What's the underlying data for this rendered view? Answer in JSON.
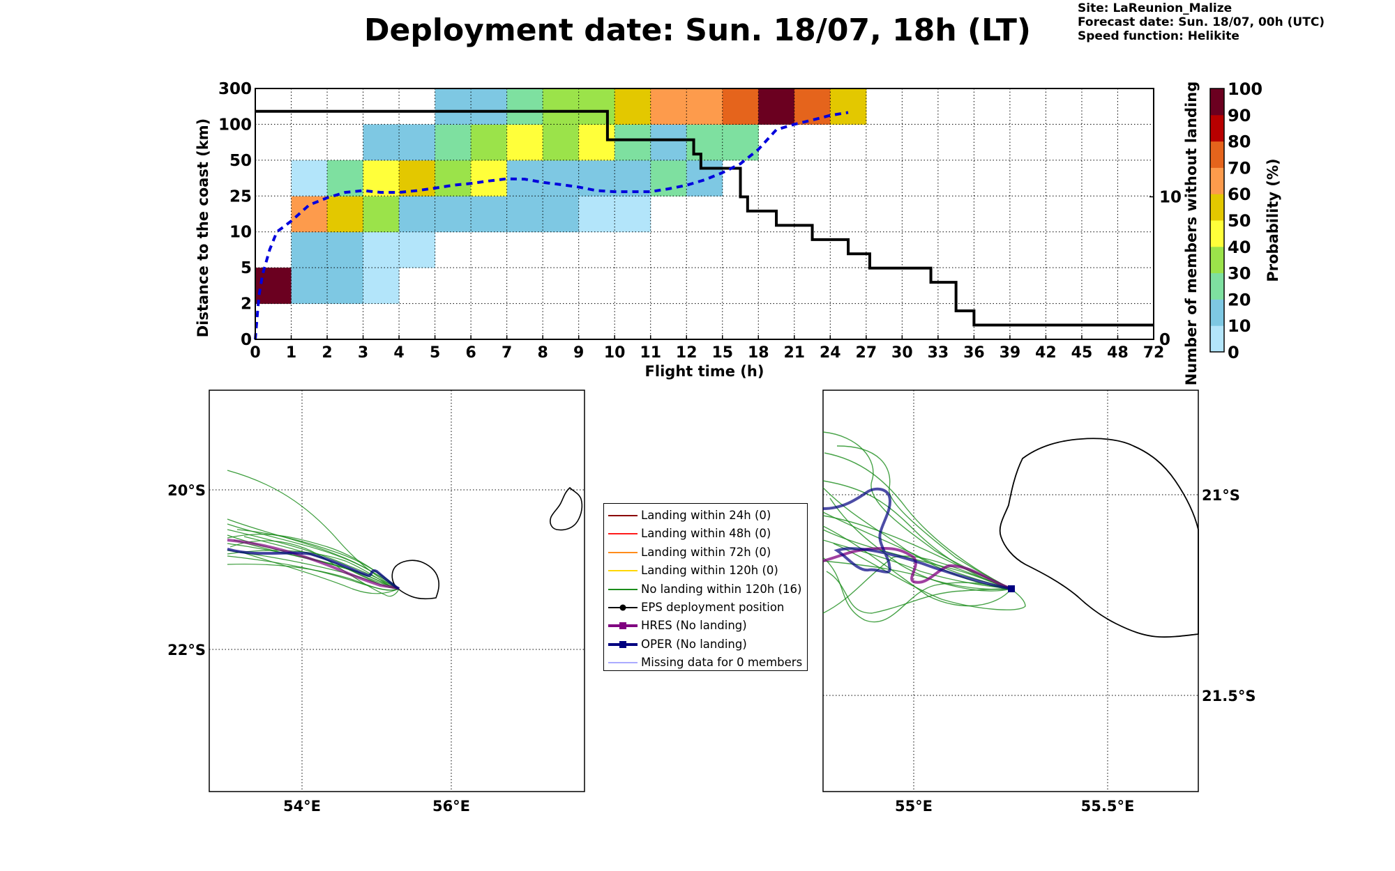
{
  "header": {
    "title": "Deployment date: Sun. 18/07, 18h (LT)",
    "site": "Site: LaReunion_Malize",
    "forecast_date": "Forecast date: Sun. 18/07, 00h (UTC)",
    "speed_function": "Speed function: Helikite"
  },
  "chart_data": [
    {
      "type": "heatmap",
      "xlabel": "Flight time (h)",
      "ylabel": "Distance to the coast (km)",
      "y2label": "Number of members without landing",
      "colorbar_label": "Probability (%)",
      "x_ticks": [
        "0",
        "1",
        "2",
        "3",
        "4",
        "5",
        "6",
        "7",
        "8",
        "9",
        "10",
        "11",
        "12",
        "15",
        "18",
        "21",
        "24",
        "27",
        "30",
        "33",
        "36",
        "39",
        "42",
        "45",
        "48",
        "72"
      ],
      "y_ticks": [
        "0",
        "2",
        "5",
        "10",
        "25",
        "50",
        "100",
        "300"
      ],
      "y2_ticks": [
        "0",
        "10"
      ],
      "y2lim": [
        0,
        17.6
      ],
      "colorbar_ticks": [
        "0",
        "10",
        "20",
        "30",
        "40",
        "50",
        "60",
        "70",
        "80",
        "90",
        "100"
      ],
      "colorbar_colors": [
        "#b3e5fa",
        "#7ec8e3",
        "#7ee0a0",
        "#9be34a",
        "#ffff3a",
        "#e3c800",
        "#fd9b4c",
        "#e5641c",
        "#b80000",
        "#6b0020"
      ],
      "cells": [
        {
          "x": 0,
          "y": 1,
          "p": 100
        },
        {
          "x": 1,
          "y": 1,
          "p": 10
        },
        {
          "x": 2,
          "y": 1,
          "p": 10
        },
        {
          "x": 3,
          "y": 1,
          "p": 0
        },
        {
          "x": 1,
          "y": 2,
          "p": 10
        },
        {
          "x": 2,
          "y": 2,
          "p": 10
        },
        {
          "x": 3,
          "y": 2,
          "p": 0
        },
        {
          "x": 4,
          "y": 2,
          "p": 0
        },
        {
          "x": 1,
          "y": 3,
          "p": 60
        },
        {
          "x": 2,
          "y": 3,
          "p": 50
        },
        {
          "x": 3,
          "y": 3,
          "p": 30
        },
        {
          "x": 4,
          "y": 3,
          "p": 10
        },
        {
          "x": 5,
          "y": 3,
          "p": 10
        },
        {
          "x": 6,
          "y": 3,
          "p": 10
        },
        {
          "x": 7,
          "y": 3,
          "p": 10
        },
        {
          "x": 8,
          "y": 3,
          "p": 10
        },
        {
          "x": 9,
          "y": 3,
          "p": 0
        },
        {
          "x": 10,
          "y": 3,
          "p": 0
        },
        {
          "x": 1,
          "y": 4,
          "p": 0
        },
        {
          "x": 2,
          "y": 4,
          "p": 20
        },
        {
          "x": 3,
          "y": 4,
          "p": 40
        },
        {
          "x": 4,
          "y": 4,
          "p": 50
        },
        {
          "x": 5,
          "y": 4,
          "p": 30
        },
        {
          "x": 6,
          "y": 4,
          "p": 40
        },
        {
          "x": 7,
          "y": 4,
          "p": 10
        },
        {
          "x": 8,
          "y": 4,
          "p": 10
        },
        {
          "x": 9,
          "y": 4,
          "p": 10
        },
        {
          "x": 10,
          "y": 4,
          "p": 10
        },
        {
          "x": 11,
          "y": 4,
          "p": 20
        },
        {
          "x": 12,
          "y": 4,
          "p": 10
        },
        {
          "x": 3,
          "y": 5,
          "p": 10
        },
        {
          "x": 4,
          "y": 5,
          "p": 10
        },
        {
          "x": 5,
          "y": 5,
          "p": 20
        },
        {
          "x": 6,
          "y": 5,
          "p": 30
        },
        {
          "x": 7,
          "y": 5,
          "p": 40
        },
        {
          "x": 8,
          "y": 5,
          "p": 30
        },
        {
          "x": 9,
          "y": 5,
          "p": 40
        },
        {
          "x": 10,
          "y": 5,
          "p": 20
        },
        {
          "x": 11,
          "y": 5,
          "p": 10
        },
        {
          "x": 12,
          "y": 5,
          "p": 20
        },
        {
          "x": 13,
          "y": 5,
          "p": 20
        },
        {
          "x": 5,
          "y": 6,
          "p": 10
        },
        {
          "x": 6,
          "y": 6,
          "p": 10
        },
        {
          "x": 7,
          "y": 6,
          "p": 20
        },
        {
          "x": 8,
          "y": 6,
          "p": 30
        },
        {
          "x": 9,
          "y": 6,
          "p": 30
        },
        {
          "x": 10,
          "y": 6,
          "p": 50
        },
        {
          "x": 11,
          "y": 6,
          "p": 60
        },
        {
          "x": 12,
          "y": 6,
          "p": 60
        },
        {
          "x": 13,
          "y": 6,
          "p": 70
        },
        {
          "x": 14,
          "y": 6,
          "p": 90
        },
        {
          "x": 15,
          "y": 6,
          "p": 70
        },
        {
          "x": 16,
          "y": 6,
          "p": 50
        }
      ],
      "series": [
        {
          "name": "Number of members without landing",
          "color": "#000000",
          "x": [
            0,
            9.65,
            9.8,
            11.5,
            12.2,
            12.4,
            13.5,
            13.7,
            14.5,
            15.5,
            16.5,
            17.1,
            18.8,
            19.5,
            20.0,
            25.0
          ],
          "y": [
            16,
            16,
            14,
            14,
            13,
            12,
            10,
            9,
            8,
            7,
            6,
            5,
            4,
            2,
            1,
            1
          ]
        },
        {
          "name": "Median distance to the coast",
          "color": "#0000dd",
          "x": [
            0,
            0.1,
            0.2,
            0.4,
            0.6,
            1,
            1.5,
            2,
            2.5,
            3,
            3.5,
            4,
            4.5,
            5,
            5.5,
            6,
            6.5,
            7,
            7.5,
            8,
            8.5,
            9,
            9.5,
            10,
            10.5,
            11,
            11.5,
            12,
            12.5,
            13,
            13.5,
            14,
            14.5,
            15,
            15.5,
            16,
            16.5
          ],
          "y": [
            0.0,
            1.2,
            1.8,
            2.5,
            3.0,
            3.3,
            3.75,
            3.95,
            4.1,
            4.15,
            4.1,
            4.1,
            4.15,
            4.22,
            4.3,
            4.35,
            4.42,
            4.48,
            4.47,
            4.38,
            4.32,
            4.25,
            4.15,
            4.12,
            4.12,
            4.12,
            4.2,
            4.3,
            4.45,
            4.65,
            4.9,
            5.3,
            5.85,
            6.0,
            6.12,
            6.25,
            6.33
          ]
        }
      ]
    }
  ],
  "maps": {
    "left": {
      "lat_labels": [
        "20°S",
        "22°S"
      ],
      "lon_labels": [
        "54°E",
        "56°E"
      ]
    },
    "right": {
      "lat_labels": [
        "21°S",
        "21.5°S"
      ],
      "lon_labels": [
        "55°E",
        "55.5°E"
      ]
    }
  },
  "legend": {
    "items": [
      {
        "label": "Landing within 24h (0)",
        "color": "#8b0000",
        "marker": "none",
        "lw": 2
      },
      {
        "label": "Landing within 48h (0)",
        "color": "#ff1a1a",
        "marker": "none",
        "lw": 2
      },
      {
        "label": "Landing within 72h (0)",
        "color": "#ff8c1a",
        "marker": "none",
        "lw": 2
      },
      {
        "label": "Landing within 120h (0)",
        "color": "#ffd700",
        "marker": "none",
        "lw": 2
      },
      {
        "label": "No landing within 120h (16)",
        "color": "#1a8c1a",
        "marker": "none",
        "lw": 2
      },
      {
        "label": "EPS deployment position",
        "color": "#000000",
        "marker": "circle",
        "lw": 2
      },
      {
        "label": "HRES (No landing)",
        "color": "#800080",
        "marker": "square",
        "lw": 4
      },
      {
        "label": "OPER (No landing)",
        "color": "#000080",
        "marker": "square",
        "lw": 4
      },
      {
        "label": "Missing data for 0 members",
        "color": "#5555ff",
        "marker": "none",
        "lw": 1
      }
    ]
  }
}
